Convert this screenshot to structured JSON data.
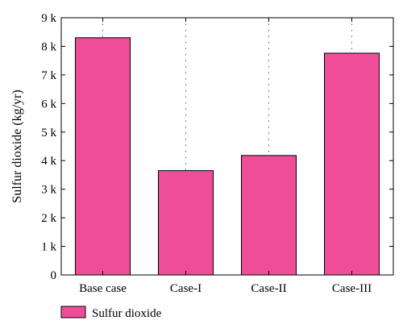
{
  "chart_data": {
    "type": "bar",
    "categories": [
      "Base case",
      "Case-I",
      "Case-II",
      "Case-III"
    ],
    "series": [
      {
        "name": "Sulfur dioxide",
        "values": [
          8300,
          3650,
          4180,
          7760
        ]
      }
    ],
    "ylabel": "Sulfur dioxide (kg/yr)",
    "xlabel": "",
    "ylim": [
      0,
      9000
    ],
    "yticks": [
      0,
      1000,
      2000,
      3000,
      4000,
      5000,
      6000,
      7000,
      8000,
      9000
    ],
    "ytick_labels": [
      "0",
      "1 k",
      "2 k",
      "3 k",
      "4 k",
      "5 k",
      "6 k",
      "7 k",
      "8 k",
      "9 k"
    ],
    "grid": "vertical dotted",
    "legend": "bottom-left",
    "bar_color": "#ef4d98",
    "bar_edge_color": "#000000"
  }
}
